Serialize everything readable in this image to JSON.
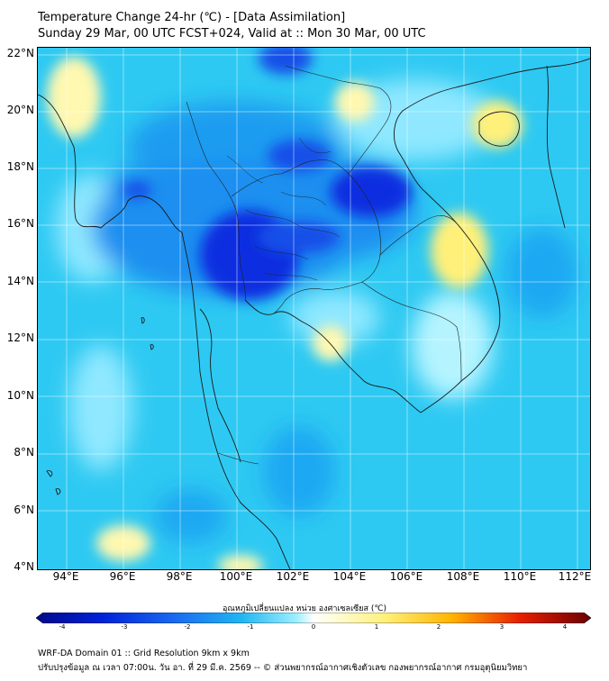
{
  "header": {
    "title": "Temperature Change 24-hr (℃) - [Data Assimilation]",
    "subtitle": "Sunday 29 Mar, 00 UTC FCST+024, Valid at :: Mon 30 Mar, 00 UTC"
  },
  "map": {
    "lat_labels": [
      "22°N",
      "20°N",
      "18°N",
      "16°N",
      "14°N",
      "12°N",
      "10°N",
      "8°N",
      "6°N",
      "4°N"
    ],
    "lon_labels": [
      "94°E",
      "96°E",
      "98°E",
      "100°E",
      "102°E",
      "104°E",
      "106°E",
      "108°E",
      "110°E",
      "112°E"
    ]
  },
  "colorbar": {
    "label": "อุณหภูมิเปลี่ยนแปลง หน่วย องศาเซลเซียส (℃)",
    "ticks": [
      "-4",
      "-3",
      "-2",
      "-1",
      "0",
      "1",
      "2",
      "3",
      "4"
    ],
    "min": -4,
    "max": 4
  },
  "colors": {
    "strong_cool": "#0a2ee0",
    "cool": "#1a8ff0",
    "mild_cool": "#2ec9f2",
    "neutral": "#9ff0ff",
    "warm": "#fff07a",
    "hot": "#d40000"
  },
  "footer": {
    "line1": "WRF-DA Domain 01 :: Grid Resolution 9km x 9km",
    "line2": "ปรับปรุงข้อมูล ณ เวลา 07:00น. วัน อา. ที่ 29 มี.ค. 2569 -- © ส่วนพยากรณ์อากาศเชิงตัวเลข กองพยากรณ์อากาศ กรมอุตุนิยมวิทยา"
  }
}
